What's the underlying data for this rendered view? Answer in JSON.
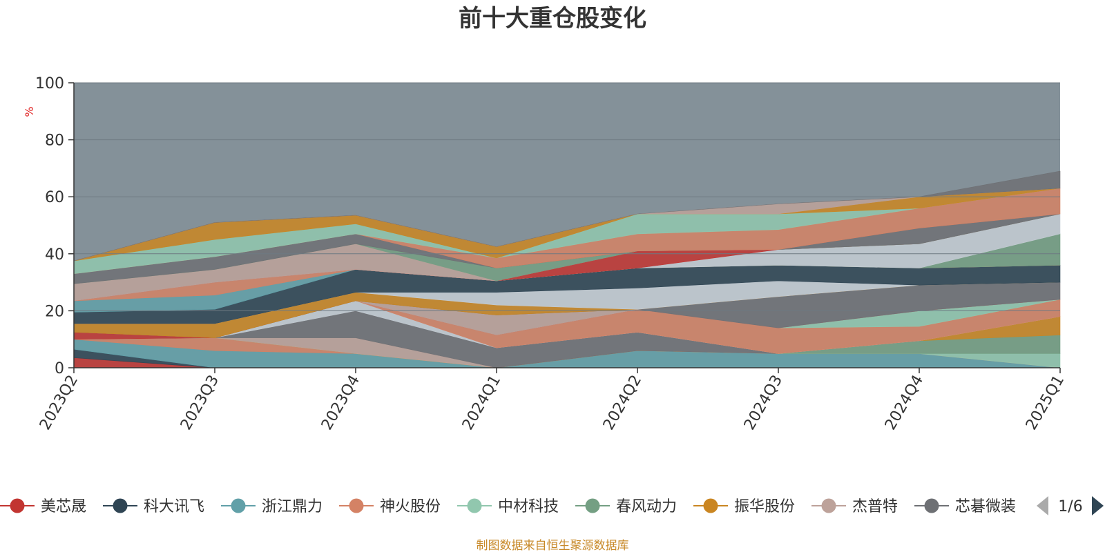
{
  "chart_data": {
    "type": "area",
    "title": "前十大重仓股变化",
    "ylabel": "%",
    "xlabel": "",
    "ylim": [
      0,
      100
    ],
    "yticks": [
      "0",
      "20",
      "40",
      "60",
      "80",
      "100"
    ],
    "categories": [
      "2023Q2",
      "2023Q3",
      "2023Q4",
      "2024Q1",
      "2024Q2",
      "2024Q3",
      "2024Q4",
      "2025Q1"
    ],
    "grid": true,
    "legend_position": "bottom",
    "series": [
      {
        "name": "美芯晟",
        "color": "#c23531",
        "values": [
          3.5,
          0,
          0,
          0,
          0,
          0,
          0,
          0
        ]
      },
      {
        "name": "科大讯飞",
        "color": "#2f4554",
        "values": [
          3,
          0,
          0,
          0,
          0,
          0,
          0,
          0
        ]
      },
      {
        "name": "浙江鼎力",
        "color": "#61a0a8",
        "values": [
          3.5,
          6,
          5,
          0,
          6,
          5,
          5,
          0
        ]
      },
      {
        "name": "神火股份",
        "color": "#d48265",
        "values": [
          0,
          4.5,
          0,
          0,
          0,
          0,
          0,
          0
        ]
      },
      {
        "name": "中材科技",
        "color": "#91c7ae",
        "values": [
          0,
          0,
          0,
          0,
          0,
          0,
          0,
          5
        ]
      },
      {
        "name": "春风动力",
        "color": "#749f83",
        "values": [
          0,
          0,
          0,
          0,
          0,
          0,
          4.5,
          6.5
        ]
      },
      {
        "name": "振华股份",
        "color": "#ca8622",
        "values": [
          0,
          0,
          0,
          0,
          0,
          0,
          0,
          6.5
        ]
      },
      {
        "name": "杰普特",
        "color": "#bda29a",
        "values": [
          0,
          0,
          5.5,
          0,
          0,
          0,
          0,
          0
        ]
      },
      {
        "name": "芯碁微装",
        "color": "#6e7074",
        "values": [
          0,
          0,
          9.5,
          7,
          6.5,
          0,
          0,
          0
        ]
      },
      {
        "name": "",
        "color": "#546570",
        "values": [
          0,
          0,
          0,
          0,
          0,
          0,
          0,
          0
        ]
      },
      {
        "name": "",
        "color": "#c4ccd3",
        "values": [
          0,
          0,
          3.5,
          0,
          0,
          0,
          0,
          0
        ]
      },
      {
        "name": "",
        "color": "#d48265",
        "values": [
          0,
          0,
          0,
          4.5,
          8,
          9,
          5,
          6
        ]
      },
      {
        "name": "",
        "color": "#61a0a8",
        "values": [
          0,
          0,
          0,
          0,
          0,
          0,
          0,
          0
        ]
      },
      {
        "name": "",
        "color": "#91c7ae",
        "values": [
          0,
          0,
          0,
          0,
          0,
          0,
          5.5,
          0
        ]
      },
      {
        "name": "",
        "color": "#c23531",
        "values": [
          2.5,
          0,
          0,
          0,
          0,
          0,
          0,
          0
        ]
      },
      {
        "name": "",
        "color": "#bda29a",
        "values": [
          0,
          0,
          0,
          7,
          0,
          0,
          0,
          0
        ]
      },
      {
        "name": "",
        "color": "#6e7074",
        "values": [
          0,
          0,
          0,
          0,
          0,
          11,
          9,
          6
        ]
      },
      {
        "name": "",
        "color": "#ca8622",
        "values": [
          3,
          5,
          3,
          3.5,
          0,
          0,
          0,
          0
        ]
      },
      {
        "name": "",
        "color": "#c4ccd3",
        "values": [
          0,
          0,
          0,
          4.5,
          7.5,
          5.5,
          0,
          0
        ]
      },
      {
        "name": "",
        "color": "#2f4554",
        "values": [
          4,
          5,
          8,
          4,
          7,
          5.5,
          6,
          6
        ]
      },
      {
        "name": "",
        "color": "#61a0a8",
        "values": [
          4,
          5,
          0,
          0,
          0,
          0,
          0,
          0
        ]
      },
      {
        "name": "",
        "color": "#d48265",
        "values": [
          0,
          4.5,
          0,
          0,
          0,
          0,
          0,
          0
        ]
      },
      {
        "name": "",
        "color": "#749f83",
        "values": [
          0,
          0,
          0,
          0,
          0,
          0,
          0,
          11
        ]
      },
      {
        "name": "",
        "color": "#c4ccd3",
        "values": [
          0,
          0,
          0,
          0,
          0,
          5.5,
          8.5,
          7
        ]
      },
      {
        "name": "",
        "color": "#c23531",
        "values": [
          0,
          0,
          0,
          0,
          6,
          0,
          0,
          0
        ]
      },
      {
        "name": "",
        "color": "#bda29a",
        "values": [
          6,
          4.5,
          9,
          0,
          0,
          0,
          0,
          0
        ]
      },
      {
        "name": "",
        "color": "#749f83",
        "values": [
          0,
          0,
          0,
          4.5,
          0,
          0,
          0,
          0
        ]
      },
      {
        "name": "",
        "color": "#6e7074",
        "values": [
          3.5,
          4.5,
          3.5,
          0,
          0,
          0,
          5.5,
          0
        ]
      },
      {
        "name": "",
        "color": "#749f83",
        "values": [
          0,
          0,
          0,
          0,
          0,
          0,
          0,
          0
        ]
      },
      {
        "name": "",
        "color": "#d48265",
        "values": [
          0,
          0,
          0,
          3.5,
          6,
          7,
          7,
          9
        ]
      },
      {
        "name": "",
        "color": "#91c7ae",
        "values": [
          4.5,
          6,
          3.5,
          0,
          7,
          5.5,
          0,
          0
        ]
      },
      {
        "name": "",
        "color": "#ca8622",
        "values": [
          0,
          6,
          3,
          4,
          0,
          0,
          4,
          0
        ]
      },
      {
        "name": "",
        "color": "#bda29a",
        "values": [
          0,
          0,
          0,
          0,
          0,
          3.5,
          0,
          0
        ]
      },
      {
        "name": "",
        "color": "#6e7074",
        "values": [
          0,
          0,
          0,
          0,
          0,
          0,
          0,
          6
        ]
      }
    ]
  },
  "legend": {
    "items": [
      {
        "name": "美芯晟",
        "color": "#c23531"
      },
      {
        "name": "科大讯飞",
        "color": "#2f4554"
      },
      {
        "name": "浙江鼎力",
        "color": "#61a0a8"
      },
      {
        "name": "神火股份",
        "color": "#d48265"
      },
      {
        "name": "中材科技",
        "color": "#91c7ae"
      },
      {
        "name": "春风动力",
        "color": "#749f83"
      },
      {
        "name": "振华股份",
        "color": "#ca8622"
      },
      {
        "name": "杰普特",
        "color": "#bda29a"
      },
      {
        "name": "芯碁微装",
        "color": "#6e7074"
      }
    ],
    "page_label": "1/6"
  },
  "footer": {
    "source": "制图数据来自恒生聚源数据库"
  },
  "colors": {
    "background_area": "#849199",
    "grid": "#6e7a82",
    "axis": "#333333",
    "title": "#333333",
    "ylabel": "#e02020",
    "footer": "#c88a2a"
  }
}
